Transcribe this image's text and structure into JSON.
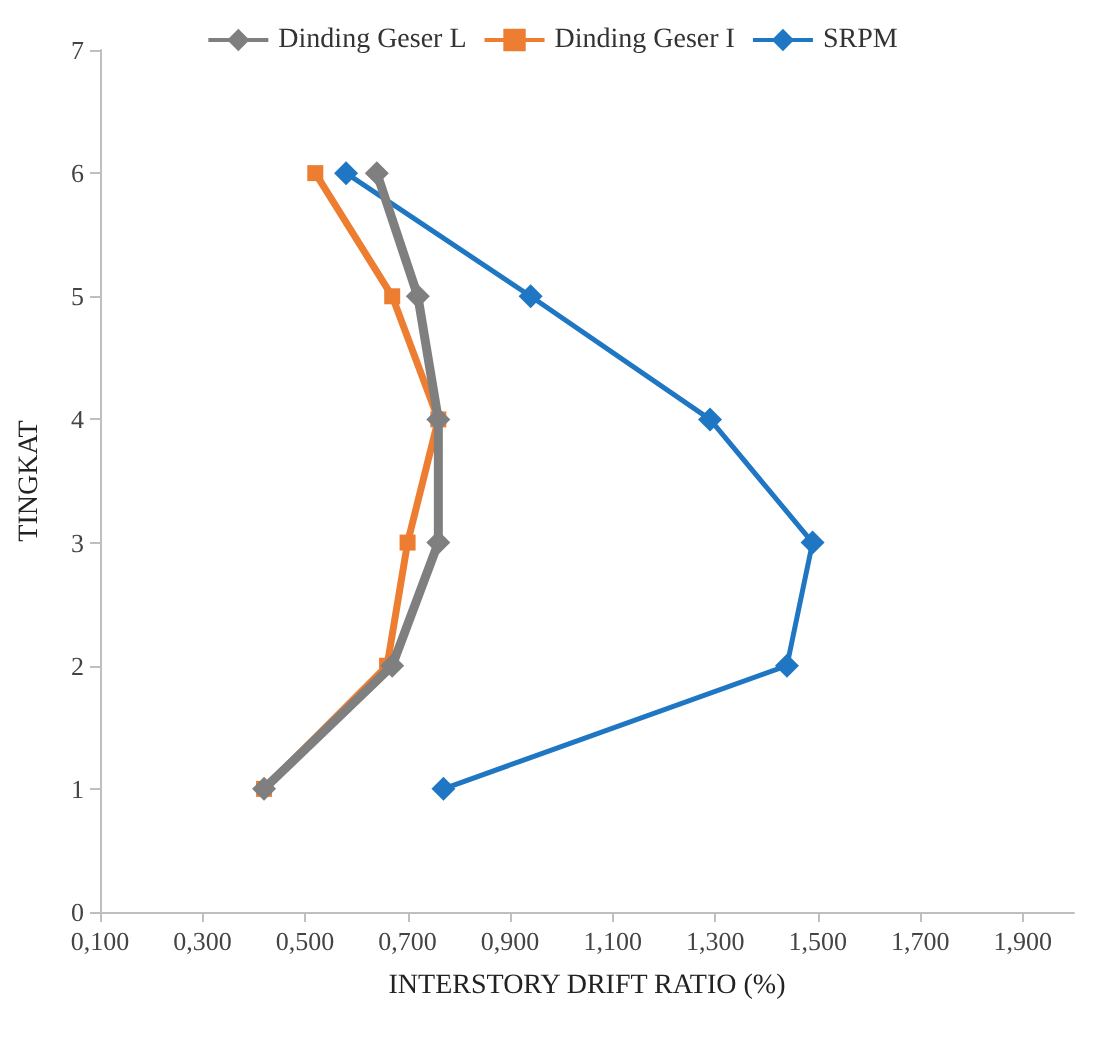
{
  "chart_data": {
    "type": "line",
    "xlabel": "INTERSTORY DRIFT RATIO (%)",
    "ylabel": "TINGKAT",
    "xlim": [
      0.1,
      2.0
    ],
    "xticks": [
      {
        "value": 0.1,
        "label": "0,100"
      },
      {
        "value": 0.3,
        "label": "0,300"
      },
      {
        "value": 0.5,
        "label": "0,500"
      },
      {
        "value": 0.7,
        "label": "0,700"
      },
      {
        "value": 0.9,
        "label": "0,900"
      },
      {
        "value": 1.1,
        "label": "1,100"
      },
      {
        "value": 1.3,
        "label": "1,300"
      },
      {
        "value": 1.5,
        "label": "1,500"
      },
      {
        "value": 1.7,
        "label": "1,700"
      },
      {
        "value": 1.9,
        "label": "1,900"
      }
    ],
    "ylim": [
      0,
      7
    ],
    "yticks": [
      0,
      1,
      2,
      3,
      4,
      5,
      6,
      7
    ],
    "series": [
      {
        "name": "Dinding Geser L",
        "color": "#7f7f7f",
        "marker": "diamond",
        "x": [
          0.42,
          0.67,
          0.76,
          0.76,
          0.72,
          0.64
        ],
        "values": [
          1,
          2,
          3,
          4,
          5,
          6
        ]
      },
      {
        "name": "Dinding Geser I",
        "color": "#ed7d31",
        "marker": "square",
        "x": [
          0.42,
          0.66,
          0.7,
          0.76,
          0.67,
          0.52
        ],
        "values": [
          1,
          2,
          3,
          4,
          5,
          6
        ]
      },
      {
        "name": "SRPM",
        "color": "#1f77c4",
        "marker": "diamond",
        "x": [
          0.77,
          1.44,
          1.49,
          1.29,
          0.94,
          0.58
        ],
        "values": [
          1,
          2,
          3,
          4,
          5,
          6
        ]
      }
    ],
    "legend": "top",
    "grid": false,
    "line_style": "solid"
  }
}
